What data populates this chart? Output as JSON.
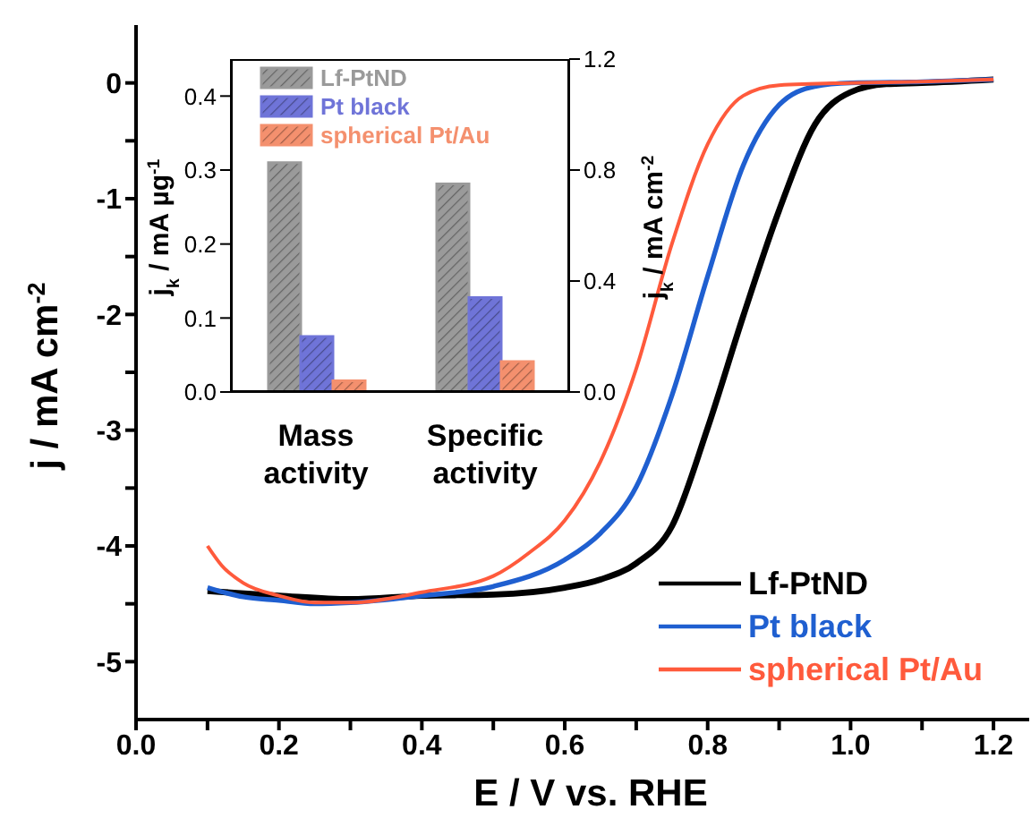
{
  "chart_data": [
    {
      "type": "line",
      "xlabel": "E / V vs. RHE",
      "ylabel": "j / mA cm$^{-2}$",
      "xlim": [
        0,
        1.25
      ],
      "ylim": [
        -5.5,
        0.5
      ],
      "xticks": [
        {
          "value": 0,
          "label": "0.0"
        },
        {
          "value": 0.1,
          "label": null
        },
        0.2,
        {
          "value": 0.3,
          "label": null
        },
        0.4,
        {
          "value": 0.5,
          "label": null
        },
        0.6,
        {
          "value": 0.7,
          "label": null
        },
        0.8,
        {
          "value": 0.9,
          "label": null
        },
        {
          "value": 1,
          "label": "1.0"
        },
        {
          "value": 1.1,
          "label": null
        },
        1.2
      ],
      "yticks": [
        -5,
        {
          "value": -4.5,
          "label": null
        },
        -4,
        {
          "value": -3.5,
          "label": null
        },
        -3,
        {
          "value": -2.5,
          "label": null
        },
        -2,
        {
          "value": -1.5,
          "label": null
        },
        -1,
        {
          "value": -0.5,
          "label": null
        },
        0
      ],
      "legend": "bottom right",
      "series": [
        {
          "name": "Lf-PtND",
          "color": "#000000",
          "x": [
            0.1,
            0.2,
            0.3,
            0.4,
            0.5,
            0.6,
            0.65,
            0.7,
            0.75,
            0.8,
            0.85,
            0.9,
            0.95,
            1.0,
            1.05,
            1.1,
            1.2
          ],
          "values": [
            -4.39,
            -4.43,
            -4.46,
            -4.43,
            -4.42,
            -4.36,
            -4.29,
            -4.15,
            -3.83,
            -2.98,
            -2.01,
            -1.1,
            -0.36,
            -0.08,
            -0.01,
            0.0,
            0.03
          ]
        },
        {
          "name": "Pt black",
          "color": "#1f5fd0",
          "x": [
            0.1,
            0.15,
            0.2,
            0.25,
            0.3,
            0.4,
            0.5,
            0.6,
            0.65,
            0.7,
            0.75,
            0.8,
            0.85,
            0.9,
            0.95,
            1.0,
            1.1,
            1.2
          ],
          "values": [
            -4.36,
            -4.44,
            -4.47,
            -4.5,
            -4.49,
            -4.43,
            -4.35,
            -4.12,
            -3.89,
            -3.49,
            -2.7,
            -1.67,
            -0.71,
            -0.19,
            -0.03,
            0.0,
            0.01,
            0.03
          ]
        },
        {
          "name": "spherical Pt/Au",
          "color": "#ff5a3c",
          "x": [
            0.1,
            0.12,
            0.15,
            0.2,
            0.25,
            0.3,
            0.4,
            0.5,
            0.55,
            0.6,
            0.65,
            0.7,
            0.75,
            0.8,
            0.85,
            0.9,
            1.0,
            1.1,
            1.2
          ],
          "values": [
            -4.0,
            -4.17,
            -4.32,
            -4.43,
            -4.49,
            -4.49,
            -4.4,
            -4.26,
            -4.06,
            -3.78,
            -3.27,
            -2.47,
            -1.39,
            -0.53,
            -0.11,
            -0.02,
            0.0,
            0.01,
            0.03
          ]
        }
      ]
    },
    {
      "type": "bar",
      "categories": [
        "Mass activity"
      ],
      "ylabel": "j$_{k}$ / mA µg$^{-1}$",
      "ylim": [
        0,
        0.45
      ],
      "yticks": [
        {
          "value": 0,
          "label": "0.0"
        },
        0.1,
        0.2,
        0.3,
        0.4
      ],
      "legend": "top",
      "series": [
        {
          "name": "Lf-PtND",
          "color": "#9a9a9a",
          "values": [
            0.31
          ]
        },
        {
          "name": "Pt black",
          "color": "#6f74d8",
          "values": [
            0.075
          ]
        },
        {
          "name": "spherical Pt/Au",
          "color": "#f4906e",
          "values": [
            0.015
          ]
        }
      ]
    },
    {
      "type": "bar",
      "categories": [
        "Specific activity"
      ],
      "y2label": "j$_{k}$ / mA cm$^{-2}$",
      "y2lim": [
        0,
        1.2
      ],
      "y2ticks": [
        {
          "value": 0,
          "label": "0.0"
        },
        0.4,
        0.8,
        1.2
      ],
      "series": [
        {
          "color": "#9a9a9a",
          "axis": "y2",
          "values": [
            0.75
          ]
        },
        {
          "color": "#6f74d8",
          "axis": "y2",
          "values": [
            0.34
          ]
        },
        {
          "color": "#f4906e",
          "axis": "y2",
          "values": [
            0.11
          ]
        }
      ]
    }
  ]
}
